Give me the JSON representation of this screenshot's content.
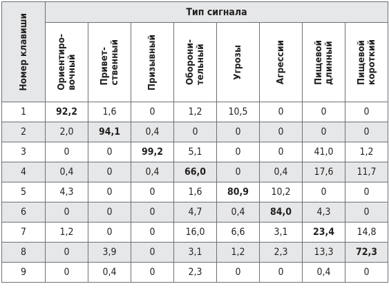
{
  "table": {
    "row_header": "Номер клавиши",
    "group_header": "Тип сигнала",
    "columns": [
      "Ориентиро-\nвочный",
      "Привет-\nственный",
      "Призывный",
      "Оборони-\nтельный",
      "Угрозы",
      "Агрессии",
      "Пищевой\nдлинный",
      "Пищевой\nкороткий"
    ],
    "rows": [
      {
        "key": "1",
        "cells": [
          "92,2",
          "1,6",
          "0",
          "1,2",
          "10,5",
          "0",
          "0",
          "0"
        ],
        "bold": 0
      },
      {
        "key": "2",
        "cells": [
          "2,0",
          "94,1",
          "0,4",
          "0",
          "0",
          "0",
          "0",
          "0"
        ],
        "bold": 1
      },
      {
        "key": "3",
        "cells": [
          "0",
          "0",
          "99,2",
          "5,1",
          "0",
          "0",
          "41,0",
          "1,2"
        ],
        "bold": 2
      },
      {
        "key": "4",
        "cells": [
          "0,4",
          "0",
          "0,4",
          "66,0",
          "0",
          "0,4",
          "17,6",
          "11,7"
        ],
        "bold": 3
      },
      {
        "key": "5",
        "cells": [
          "4,3",
          "0",
          "0",
          "1,6",
          "80,9",
          "10,2",
          "0",
          "0"
        ],
        "bold": 4
      },
      {
        "key": "6",
        "cells": [
          "0",
          "0",
          "0",
          "4,7",
          "0,4",
          "84,0",
          "4,3",
          "0"
        ],
        "bold": 5
      },
      {
        "key": "7",
        "cells": [
          "1,2",
          "0",
          "0",
          "16,0",
          "6,6",
          "3,1",
          "23,4",
          "14,8"
        ],
        "bold": 6
      },
      {
        "key": "8",
        "cells": [
          "0",
          "3,9",
          "0",
          "3,1",
          "1,2",
          "2,3",
          "13,3",
          "72,3"
        ],
        "bold": 7
      },
      {
        "key": "9",
        "cells": [
          "0",
          "0,4",
          "0",
          "2,3",
          "0",
          "0",
          "0,4",
          "0"
        ],
        "bold": -1
      }
    ]
  },
  "colors": {
    "header_shade": "#e6e7e8",
    "border": "#6d6e71",
    "text": "#231f20"
  }
}
